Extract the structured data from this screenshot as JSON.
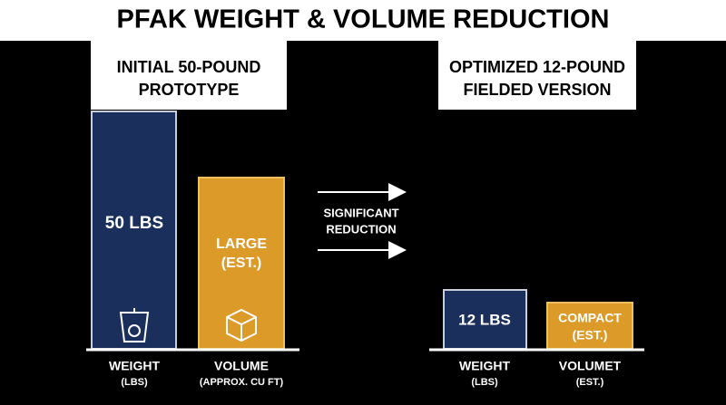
{
  "title": "PFAK WEIGHT & VOLUME REDUCTION",
  "left": {
    "heading": [
      "INITIAL 50-POUND",
      "PROTOTYPE"
    ],
    "bars": [
      {
        "label": "50 LBS",
        "caption": [
          "WEIGHT",
          "(LBS)"
        ]
      },
      {
        "label": [
          "LARGE",
          "(EST.)"
        ],
        "caption": [
          "VOLUME",
          "(APPROX. CU FT)"
        ]
      }
    ]
  },
  "middle": {
    "label": [
      "SIGNIFICANT",
      "REDUCTION"
    ]
  },
  "right": {
    "heading": [
      "OPTIMIZED 12-POUND",
      "FIELDED VERSION"
    ],
    "bars": [
      {
        "label": "12 LBS",
        "caption": [
          "WEIGHT",
          "(LBS)"
        ]
      },
      {
        "label": [
          "COMPACT",
          "(EST.)"
        ],
        "caption": [
          "VOLUMET",
          "(EST.)"
        ]
      }
    ]
  }
}
